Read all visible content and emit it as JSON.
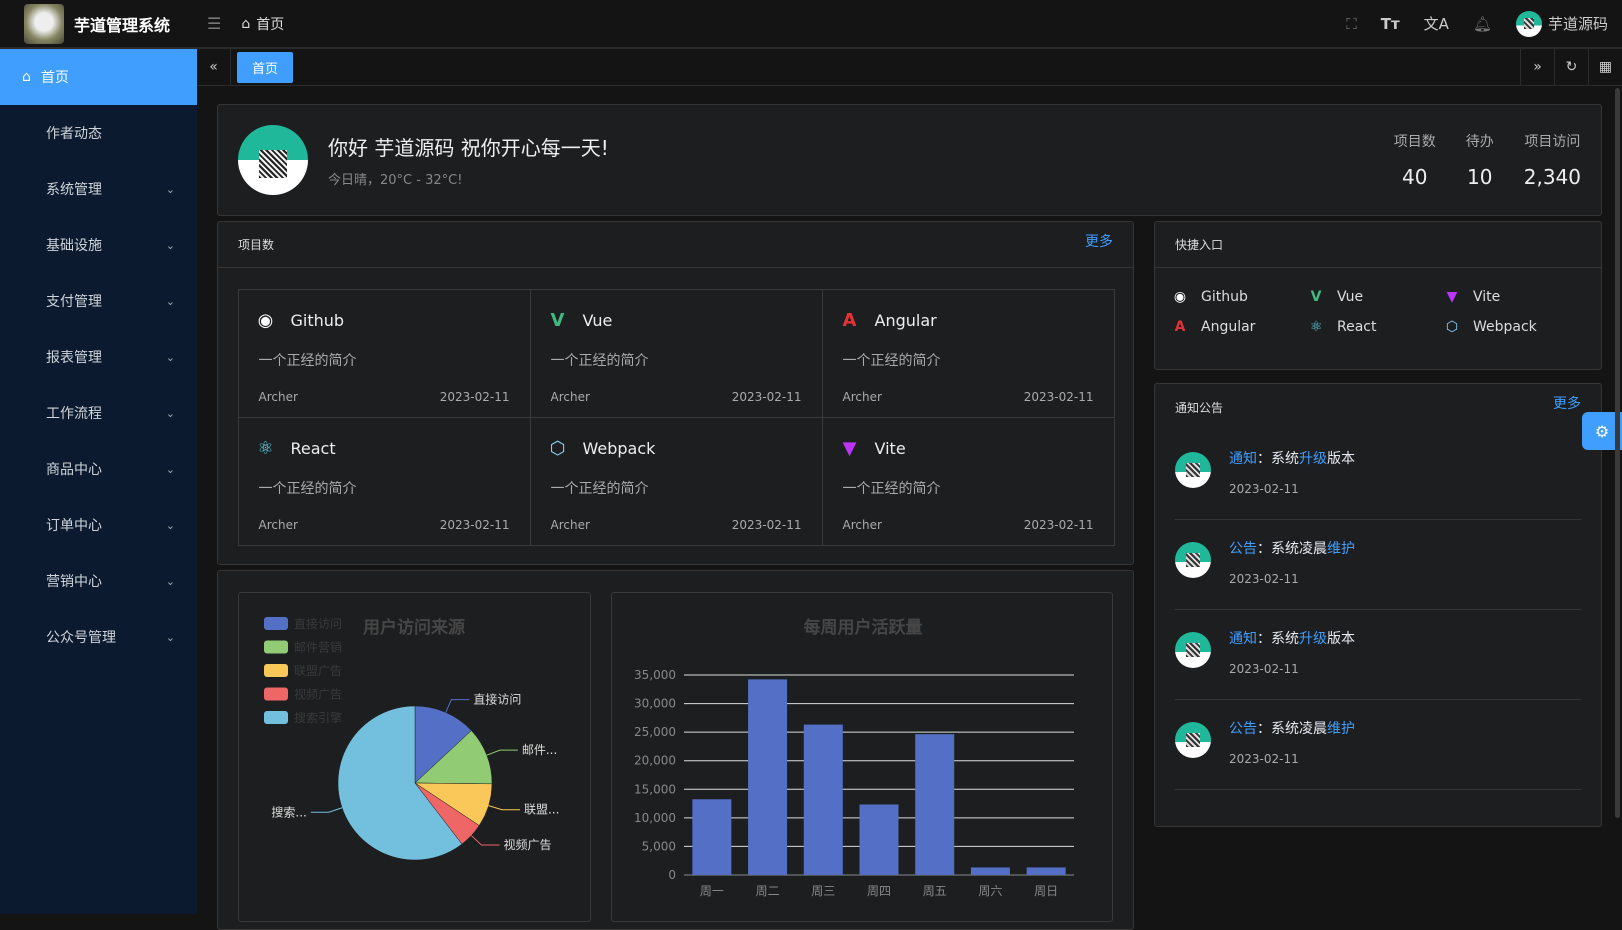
{
  "header": {
    "app_title": "芋道管理系统",
    "breadcrumb": "首页",
    "username": "芋道源码",
    "icons": [
      "fullscreen-icon",
      "font-size-icon",
      "translate-icon",
      "bell-icon"
    ]
  },
  "sidebar": {
    "items": [
      {
        "label": "首页",
        "active": true
      },
      {
        "label": "作者动态"
      },
      {
        "label": "系统管理",
        "expandable": true
      },
      {
        "label": "基础设施",
        "expandable": true
      },
      {
        "label": "支付管理",
        "expandable": true
      },
      {
        "label": "报表管理",
        "expandable": true
      },
      {
        "label": "工作流程",
        "expandable": true
      },
      {
        "label": "商品中心",
        "expandable": true
      },
      {
        "label": "订单中心",
        "expandable": true
      },
      {
        "label": "营销中心",
        "expandable": true
      },
      {
        "label": "公众号管理",
        "expandable": true
      }
    ]
  },
  "tabs": [
    {
      "label": "首页",
      "active": true
    }
  ],
  "welcome": {
    "greeting": "你好 芋道源码 祝你开心每一天!",
    "weather": "今日晴，20°C - 32°C!",
    "stats": [
      {
        "label": "项目数",
        "value": "40"
      },
      {
        "label": "待办",
        "value": "10"
      },
      {
        "label": "项目访问",
        "value": "2,340"
      }
    ]
  },
  "projects": {
    "title": "项目数",
    "more": "更多",
    "items": [
      {
        "name": "Github",
        "desc": "一个正经的简介",
        "author": "Archer",
        "date": "2023-02-11",
        "icon": "github-icon",
        "color": "#ffffff"
      },
      {
        "name": "Vue",
        "desc": "一个正经的简介",
        "author": "Archer",
        "date": "2023-02-11",
        "icon": "vue-icon",
        "color": "#42b883"
      },
      {
        "name": "Angular",
        "desc": "一个正经的简介",
        "author": "Archer",
        "date": "2023-02-11",
        "icon": "angular-icon",
        "color": "#e23237"
      },
      {
        "name": "React",
        "desc": "一个正经的简介",
        "author": "Archer",
        "date": "2023-02-11",
        "icon": "react-icon",
        "color": "#61dafb"
      },
      {
        "name": "Webpack",
        "desc": "一个正经的简介",
        "author": "Archer",
        "date": "2023-02-11",
        "icon": "webpack-icon",
        "color": "#8ed6fb"
      },
      {
        "name": "Vite",
        "desc": "一个正经的简介",
        "author": "Archer",
        "date": "2023-02-11",
        "icon": "vite-icon",
        "color": "#bd34fe"
      }
    ]
  },
  "quick": {
    "title": "快捷入口",
    "items": [
      {
        "name": "Github",
        "icon": "github-icon",
        "color": "#ffffff"
      },
      {
        "name": "Vue",
        "icon": "vue-icon",
        "color": "#42b883"
      },
      {
        "name": "Vite",
        "icon": "vite-icon",
        "color": "#bd34fe"
      },
      {
        "name": "Angular",
        "icon": "angular-icon",
        "color": "#e23237"
      },
      {
        "name": "React",
        "icon": "react-icon",
        "color": "#61dafb"
      },
      {
        "name": "Webpack",
        "icon": "webpack-icon",
        "color": "#8ed6fb"
      }
    ]
  },
  "notice": {
    "title": "通知公告",
    "more": "更多",
    "items": [
      {
        "type": "通知",
        "sep": "：",
        "pre": "系统",
        "hl": "升级",
        "post": "版本",
        "date": "2023-02-11"
      },
      {
        "type": "公告",
        "sep": "：",
        "pre": "系统凌晨",
        "hl": "维护",
        "post": "",
        "date": "2023-02-11"
      },
      {
        "type": "通知",
        "sep": "：",
        "pre": "系统",
        "hl": "升级",
        "post": "版本",
        "date": "2023-02-11"
      },
      {
        "type": "公告",
        "sep": "：",
        "pre": "系统凌晨",
        "hl": "维护",
        "post": "",
        "date": "2023-02-11"
      }
    ]
  },
  "chart_data": [
    {
      "type": "pie",
      "title": "用户访问来源",
      "legend_position": "top-left",
      "slices": [
        {
          "name": "直接访问",
          "label": "直接访问",
          "value": 335,
          "color": "#5470c6"
        },
        {
          "name": "邮件营销",
          "label": "邮件...",
          "value": 310,
          "color": "#91cc75"
        },
        {
          "name": "联盟广告",
          "label": "联盟...",
          "value": 234,
          "color": "#fac858"
        },
        {
          "name": "视频广告",
          "label": "视频广告",
          "value": 135,
          "color": "#ee6666"
        },
        {
          "name": "搜索引擎",
          "label": "搜索...",
          "value": 1548,
          "color": "#73c0de"
        }
      ]
    },
    {
      "type": "bar",
      "title": "每周用户活跃量",
      "categories": [
        "周一",
        "周二",
        "周三",
        "周四",
        "周五",
        "周六",
        "周日"
      ],
      "values": [
        13253,
        34235,
        26321,
        12340,
        24643,
        1322,
        1324
      ],
      "ylim": [
        0,
        35000
      ],
      "yticks": [
        "0",
        "5,000",
        "10,000",
        "15,000",
        "20,000",
        "25,000",
        "30,000",
        "35,000"
      ],
      "color": "#5470c6",
      "grid": true
    }
  ]
}
